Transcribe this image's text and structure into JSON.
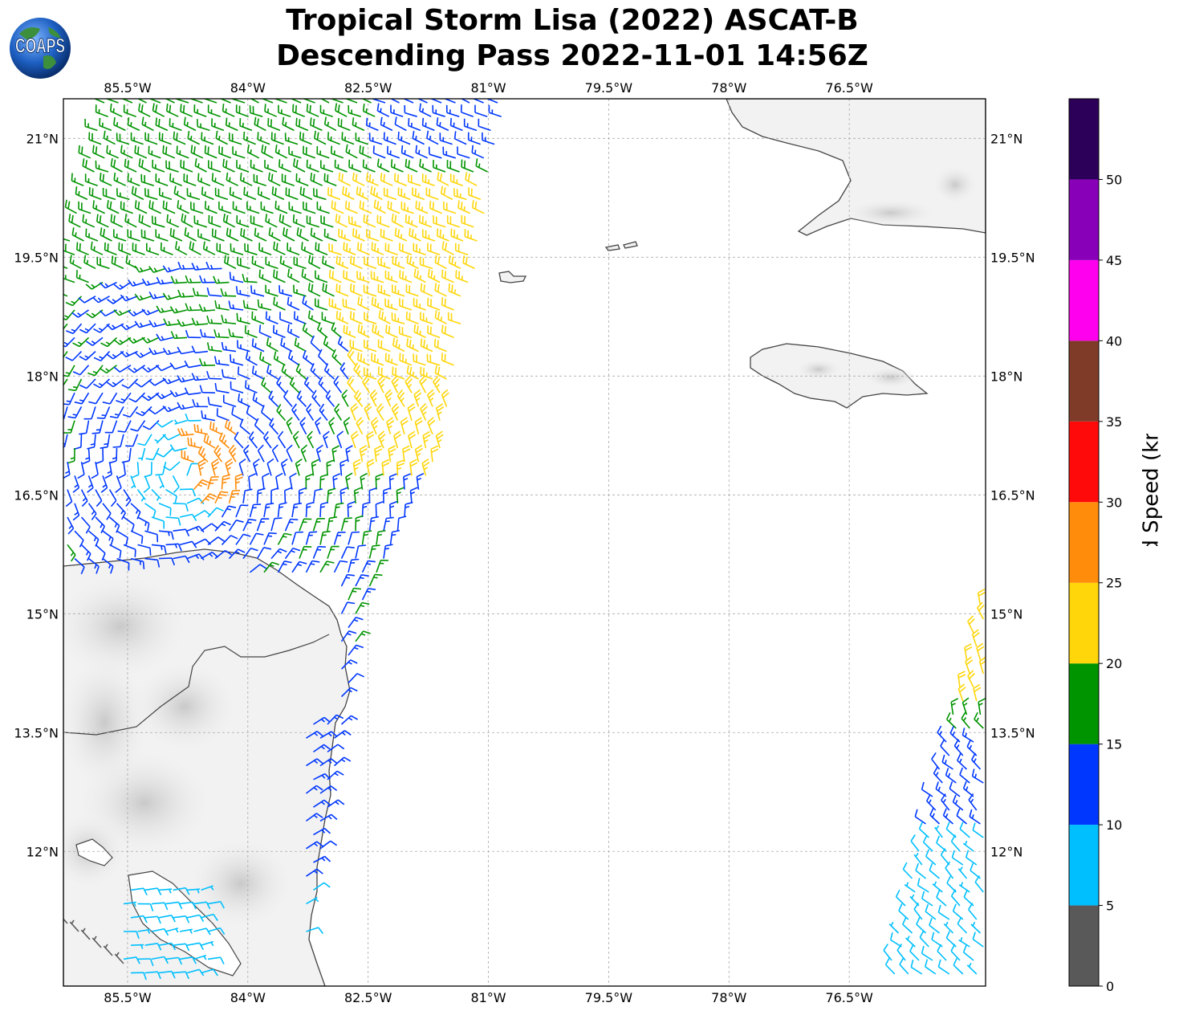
{
  "header": {
    "title_line1": "Tropical Storm Lisa (2022) ASCAT-B",
    "title_line2": "Descending Pass 2022-11-01 14:56Z",
    "logo_text": "COAPS"
  },
  "map": {
    "lon_range": [
      -86.3,
      -74.8
    ],
    "lat_range": [
      10.3,
      21.5
    ],
    "lon_ticks": [
      {
        "value": -85.5,
        "label": "85.5°W"
      },
      {
        "value": -84.0,
        "label": "84°W"
      },
      {
        "value": -82.5,
        "label": "82.5°W"
      },
      {
        "value": -81.0,
        "label": "81°W"
      },
      {
        "value": -79.5,
        "label": "79.5°W"
      },
      {
        "value": -78.0,
        "label": "78°W"
      },
      {
        "value": -76.5,
        "label": "76.5°W"
      }
    ],
    "lat_ticks": [
      {
        "value": 21.0,
        "label": "21°N"
      },
      {
        "value": 19.5,
        "label": "19.5°N"
      },
      {
        "value": 18.0,
        "label": "18°N"
      },
      {
        "value": 16.5,
        "label": "16.5°N"
      },
      {
        "value": 15.0,
        "label": "15°N"
      },
      {
        "value": 13.5,
        "label": "13.5°N"
      },
      {
        "value": 12.0,
        "label": "12°N"
      }
    ],
    "grid": true,
    "land_color": "#f2f2f2",
    "coast_color": "#444444"
  },
  "colorbar": {
    "label": "Wind Speed (knots)",
    "bins": [
      {
        "min": 0,
        "max": 5,
        "color": "#595959"
      },
      {
        "min": 5,
        "max": 10,
        "color": "#00bfff"
      },
      {
        "min": 10,
        "max": 15,
        "color": "#0037ff"
      },
      {
        "min": 15,
        "max": 20,
        "color": "#009400"
      },
      {
        "min": 20,
        "max": 25,
        "color": "#ffd60a"
      },
      {
        "min": 25,
        "max": 30,
        "color": "#ff8c0a"
      },
      {
        "min": 30,
        "max": 35,
        "color": "#ff0a0a"
      },
      {
        "min": 35,
        "max": 40,
        "color": "#7f3b27"
      },
      {
        "min": 40,
        "max": 45,
        "color": "#ff00ee"
      },
      {
        "min": 45,
        "max": 50,
        "color": "#8800b8"
      },
      {
        "min": 50,
        "max": 55,
        "color": "#2c0059"
      }
    ],
    "ticks": [
      {
        "value": 0,
        "label": "0"
      },
      {
        "value": 5,
        "label": "5"
      },
      {
        "value": 10,
        "label": "10"
      },
      {
        "value": 15,
        "label": "15"
      },
      {
        "value": 20,
        "label": "20"
      },
      {
        "value": 25,
        "label": "25"
      },
      {
        "value": 30,
        "label": "30"
      },
      {
        "value": 35,
        "label": "35"
      },
      {
        "value": 40,
        "label": "40"
      },
      {
        "value": 45,
        "label": "45"
      },
      {
        "value": 50,
        "label": "50"
      }
    ]
  }
}
